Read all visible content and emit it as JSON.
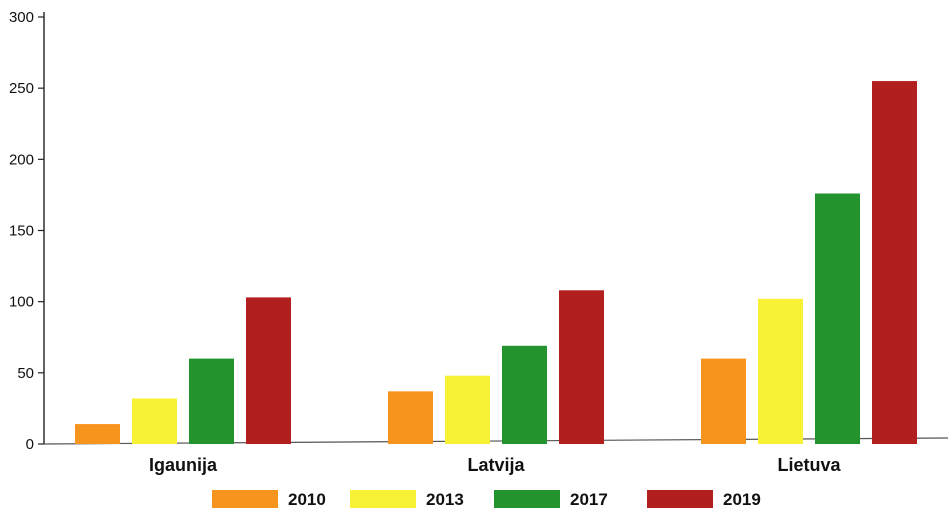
{
  "chart_data": {
    "type": "bar",
    "title": "",
    "xlabel": "",
    "ylabel": "",
    "ylim": [
      0,
      300
    ],
    "yticks": [
      0,
      50,
      100,
      150,
      200,
      250,
      300
    ],
    "grid": false,
    "legend_position": "bottom",
    "categories": [
      "Igaunija",
      "Latvija",
      "Lietuva"
    ],
    "series": [
      {
        "name": "2010",
        "color": "#f7941d",
        "values": [
          14,
          37,
          60
        ]
      },
      {
        "name": "2013",
        "color": "#f7f236",
        "values": [
          32,
          48,
          102
        ]
      },
      {
        "name": "2017",
        "color": "#23932e",
        "values": [
          60,
          69,
          176
        ]
      },
      {
        "name": "2019",
        "color": "#b21f1f",
        "values": [
          103,
          108,
          255
        ]
      }
    ]
  }
}
